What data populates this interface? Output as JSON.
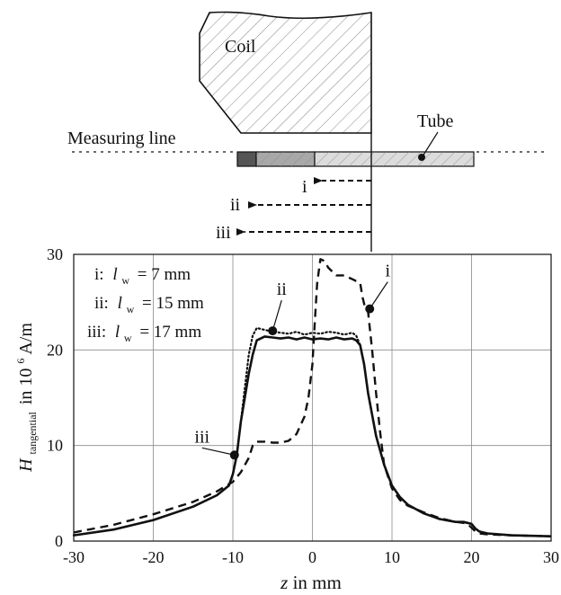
{
  "colors": {
    "ink": "#111111",
    "grid": "#8a8a8a",
    "tube_dark": "#555555",
    "tube_mid": "#a8a8a8",
    "tube_light": "#d9d9d9"
  },
  "schematic": {
    "coil_label": "Coil",
    "tube_label": "Tube",
    "measuring_line_label": "Measuring line",
    "arrows": [
      "i",
      "ii",
      "iii"
    ]
  },
  "legend": {
    "entries": [
      {
        "id": "i:",
        "symbol": "l",
        "sub": "w",
        "value": "= 7 mm"
      },
      {
        "id": "ii:",
        "symbol": "l",
        "sub": "w",
        "value": "= 15 mm"
      },
      {
        "id": "iii:",
        "symbol": "l",
        "sub": "w",
        "value": "= 17 mm"
      }
    ]
  },
  "chart_data": {
    "type": "line",
    "xlabel_italic": "z",
    "xlabel_rest": " in mm",
    "ylabel_main": "H",
    "ylabel_sub": "tangential",
    "ylabel_rest": " in 10",
    "ylabel_exp": "6",
    "ylabel_unit": " A/m",
    "xlim": [
      -30,
      30
    ],
    "ylim": [
      0,
      30
    ],
    "x_ticks": [
      "-30",
      "-20",
      "-10",
      "0",
      "10",
      "20",
      "30"
    ],
    "y_ticks": [
      "0",
      "10",
      "20",
      "30"
    ],
    "grid": true,
    "series": [
      {
        "name": "i",
        "style": "dashed",
        "x": [
          -30,
          -25,
          -20,
          -15,
          -12,
          -10,
          -9,
          -8,
          -7.5,
          -7,
          -6,
          -5,
          -4,
          -3,
          -2,
          -1,
          -0.5,
          0,
          0.3,
          0.6,
          1,
          1.5,
          2,
          3,
          4,
          5,
          6,
          6.3,
          6.6,
          7,
          7.5,
          8,
          8.5,
          9,
          10,
          11,
          12,
          14,
          16,
          18,
          19,
          19.5,
          20,
          20.5,
          21,
          22,
          25,
          30
        ],
        "y": [
          0.9,
          1.7,
          2.8,
          4.1,
          5.2,
          6.2,
          7.2,
          8.7,
          10.0,
          10.4,
          10.4,
          10.3,
          10.3,
          10.5,
          11.2,
          13.0,
          15.0,
          18.5,
          23.0,
          27.0,
          29.5,
          29.3,
          28.6,
          27.8,
          27.8,
          27.4,
          27.0,
          25.5,
          24.5,
          24.0,
          20.0,
          15.5,
          11.5,
          8.0,
          5.5,
          4.3,
          3.7,
          3.0,
          2.4,
          2.0,
          1.9,
          1.8,
          1.4,
          1.0,
          0.8,
          0.7,
          0.6,
          0.5
        ]
      },
      {
        "name": "ii",
        "style": "dotted",
        "x": [
          -30,
          -25,
          -20,
          -15,
          -12,
          -10.5,
          -10,
          -9.5,
          -9,
          -8.5,
          -8,
          -7.5,
          -7,
          -6,
          -5,
          -4,
          -3,
          -2,
          -1,
          0,
          1,
          2,
          3,
          4,
          5,
          5.5,
          6,
          6.5,
          7,
          8,
          9,
          10,
          11,
          12,
          14,
          16,
          18,
          19,
          19.5,
          20,
          20.5,
          21,
          22,
          25,
          30
        ],
        "y": [
          0.6,
          1.2,
          2.2,
          3.6,
          4.8,
          5.8,
          7.0,
          9.0,
          12.5,
          16.0,
          19.5,
          21.5,
          22.3,
          22.1,
          21.9,
          21.8,
          21.7,
          21.9,
          21.6,
          21.8,
          21.7,
          21.9,
          21.8,
          21.6,
          21.8,
          21.5,
          20.5,
          18.5,
          15.5,
          11.0,
          8.0,
          5.8,
          4.6,
          3.8,
          2.9,
          2.3,
          2.0,
          2.0,
          1.9,
          1.8,
          1.3,
          1.0,
          0.8,
          0.6,
          0.5
        ]
      },
      {
        "name": "iii",
        "style": "solid",
        "x": [
          -30,
          -25,
          -20,
          -15,
          -12,
          -10.5,
          -10,
          -9.5,
          -9,
          -8.5,
          -8,
          -7.5,
          -7,
          -6,
          -5,
          -4,
          -3,
          -2,
          -1,
          0,
          1,
          2,
          3,
          4,
          5,
          5.5,
          6,
          6.5,
          7,
          8,
          9,
          10,
          11,
          12,
          14,
          16,
          18,
          19,
          19.5,
          20,
          20.5,
          21,
          22,
          25,
          30
        ],
        "y": [
          0.6,
          1.2,
          2.2,
          3.6,
          4.8,
          5.8,
          7.0,
          9.0,
          12.5,
          15.0,
          17.5,
          19.5,
          21.0,
          21.4,
          21.3,
          21.2,
          21.3,
          21.1,
          21.3,
          21.1,
          21.2,
          21.1,
          21.3,
          21.1,
          21.2,
          21.0,
          20.5,
          18.5,
          15.5,
          11.0,
          8.0,
          5.8,
          4.6,
          3.8,
          2.9,
          2.3,
          2.0,
          2.0,
          1.9,
          1.8,
          1.3,
          1.0,
          0.8,
          0.6,
          0.5
        ]
      }
    ],
    "annotations": [
      {
        "label": "i",
        "point": [
          7.2,
          24.3
        ]
      },
      {
        "label": "ii",
        "point": [
          -5.0,
          22.0
        ]
      },
      {
        "label": "iii",
        "point": [
          -9.8,
          9.0
        ]
      }
    ]
  }
}
